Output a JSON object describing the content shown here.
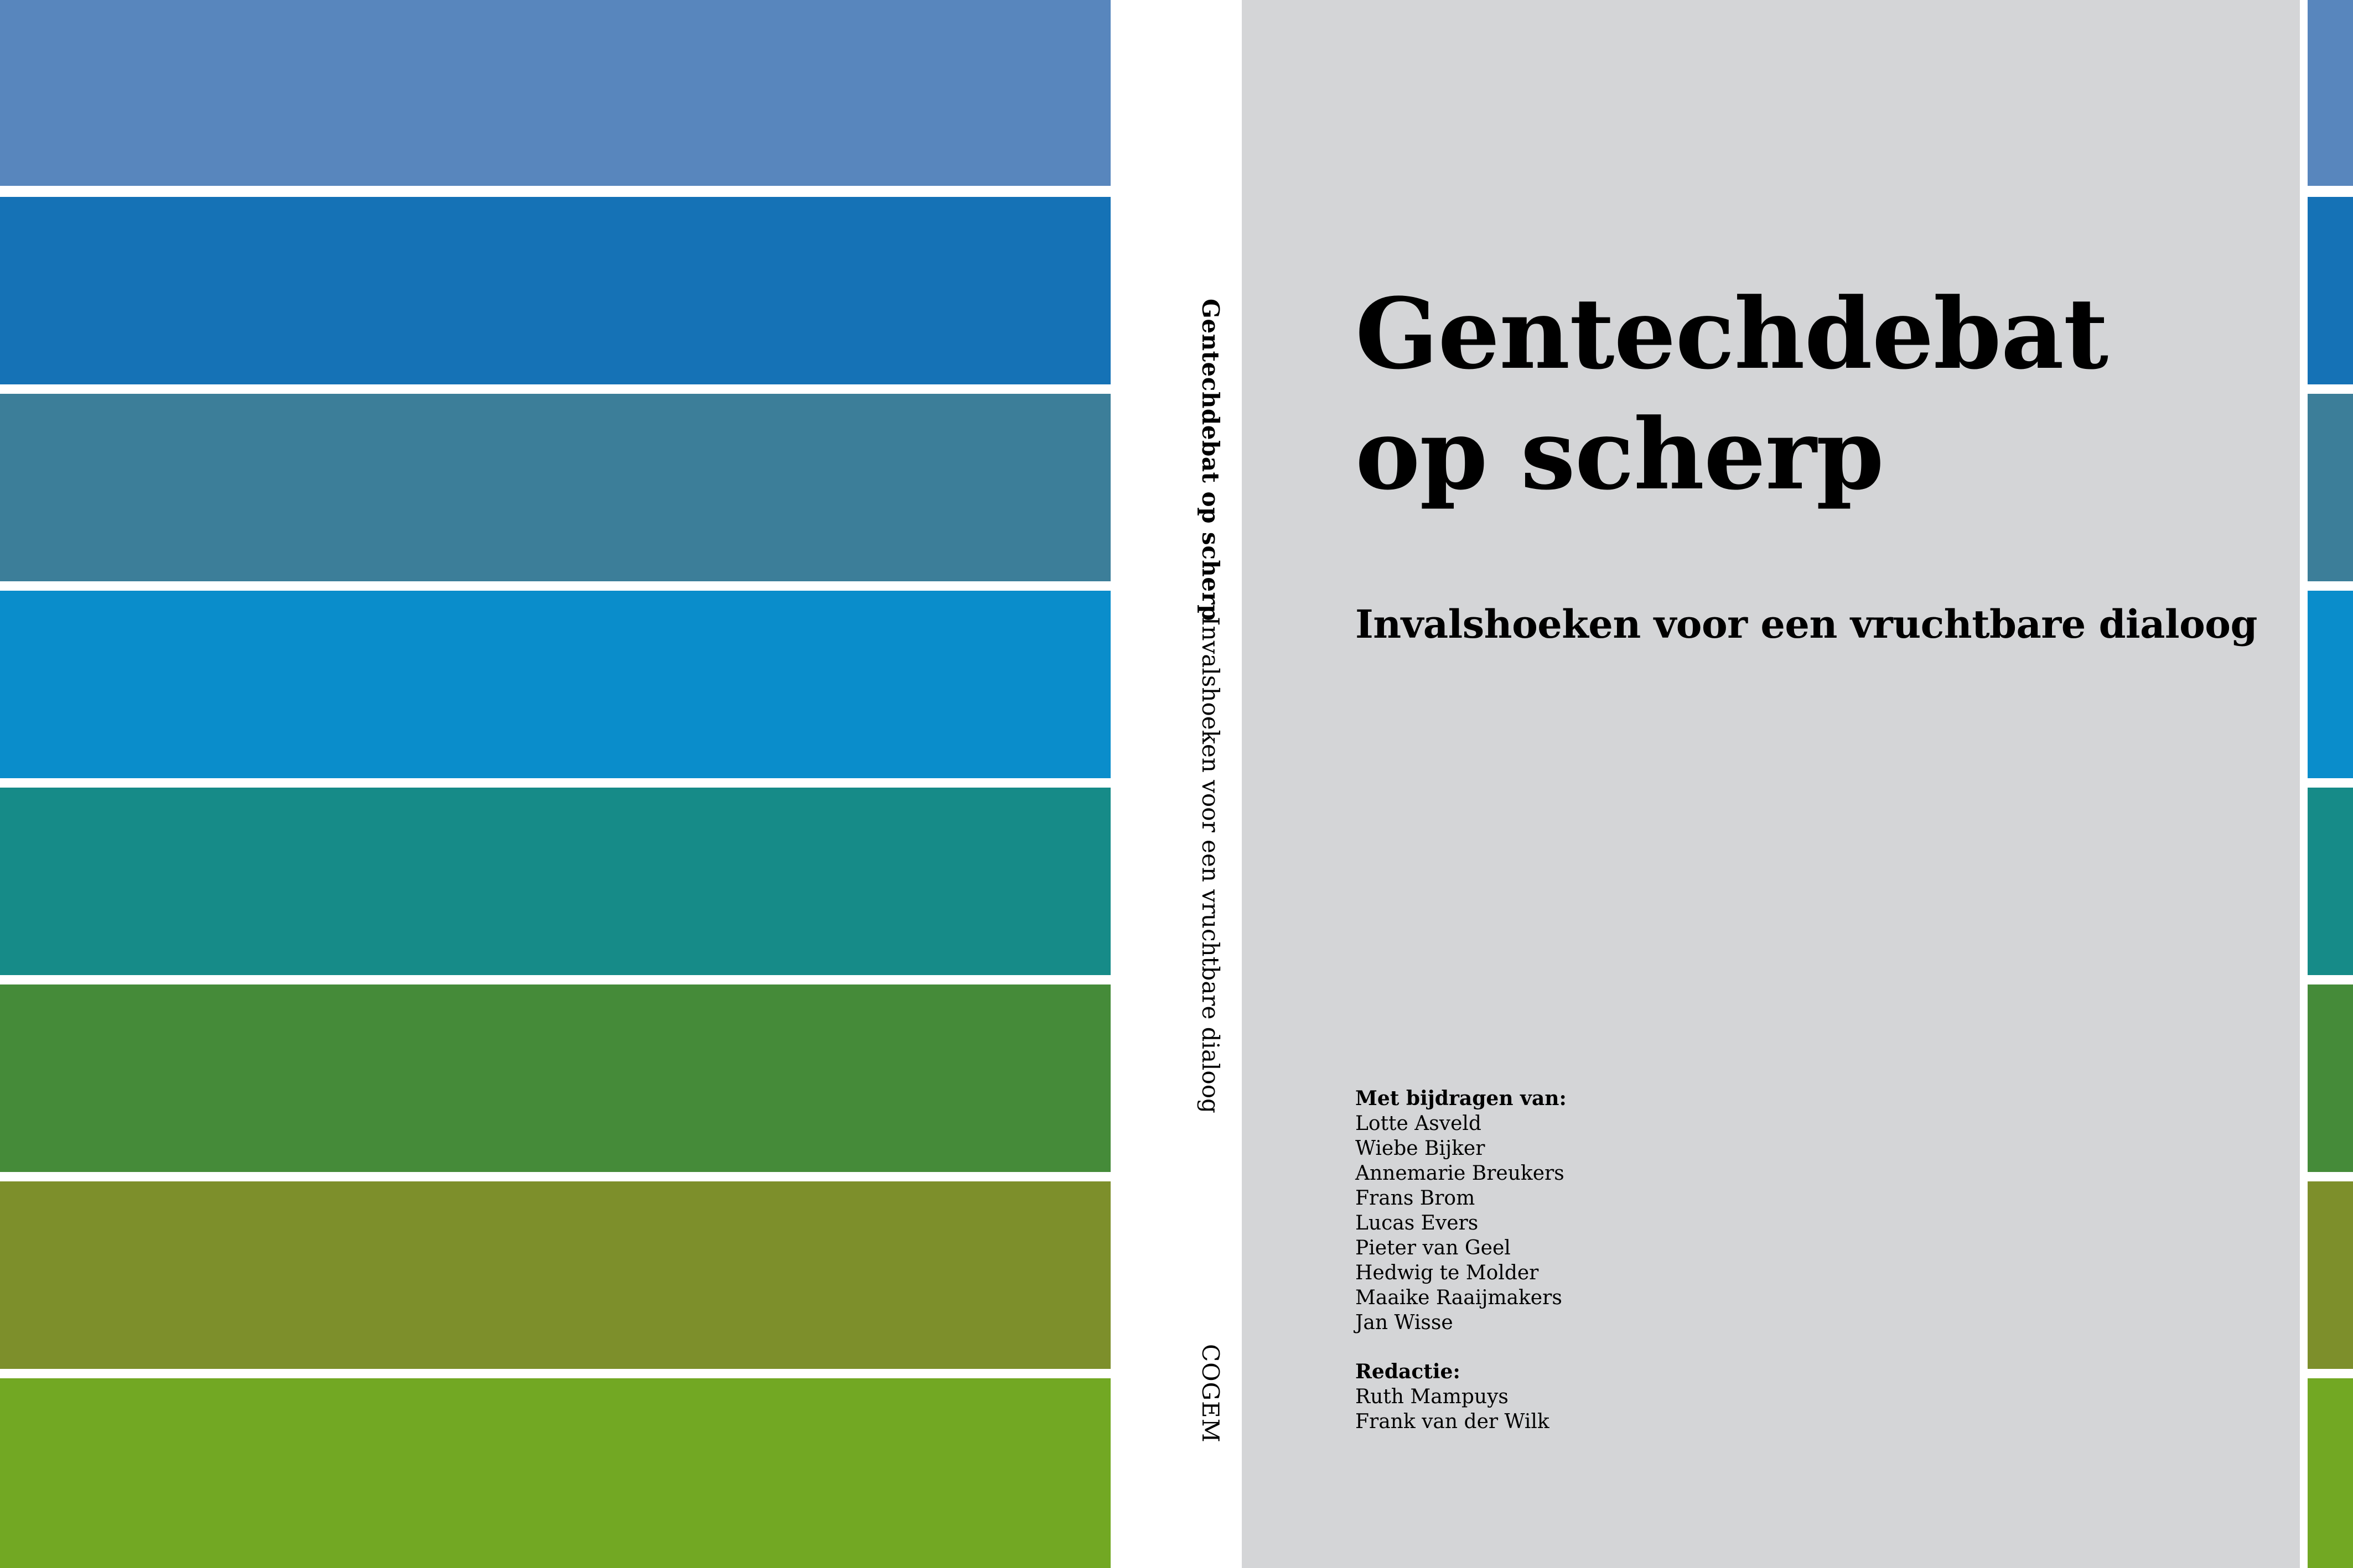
{
  "front": {
    "title_line1": "Gentechdebat",
    "title_line2": "op scherp",
    "subtitle": "Invalshoeken voor een vruchtbare dialoog",
    "contributors_heading": "Met bijdragen van:",
    "contributors": [
      "Lotte Asveld",
      "Wiebe Bijker",
      "Annemarie Breukers",
      "Frans Brom",
      "Lucas Evers",
      "Pieter van Geel",
      "Hedwig te Molder",
      "Maaike Raaijmakers",
      "Jan Wisse"
    ],
    "editors_heading": "Redactie:",
    "editors": [
      "Ruth Mampuys",
      "Frank van der Wilk"
    ]
  },
  "spine": {
    "title": "Gentechdebat op scherp",
    "subtitle": "Invalshoeken voor een vruchtbare dialoog",
    "publisher": "COGEM"
  },
  "colors": {
    "front_background": "#d4d5d7",
    "stripes": [
      "#5886bd",
      "#1572b6",
      "#3c7e99",
      "#0a8dcb",
      "#168b88",
      "#458b39",
      "#7d8f2b",
      "#72a823"
    ]
  }
}
